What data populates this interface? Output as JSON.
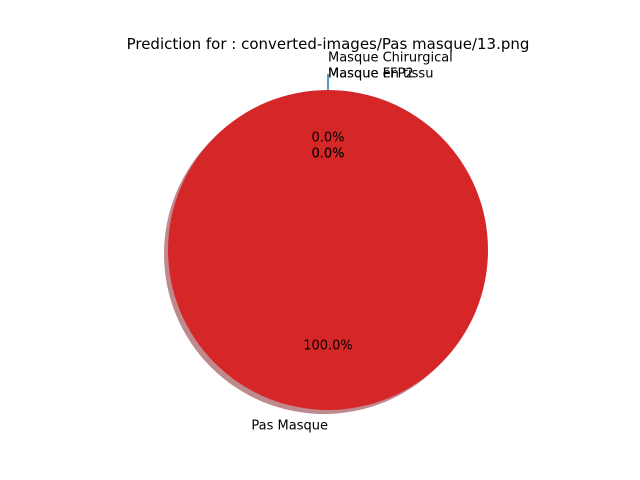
{
  "chart_data": {
    "type": "pie",
    "title": "Prediction for : converted-images/Pas masque/13.png",
    "slices": [
      {
        "label": "Masque Chirurgical",
        "value": 0.0,
        "pct_label": "0.0%",
        "color": "#1f77b4"
      },
      {
        "label": "Masque FFP2",
        "value": 0.0,
        "pct_label": "0.0%",
        "color": "#ff7f0e"
      },
      {
        "label": "Masque en tissu",
        "value": 0.0,
        "pct_label": "0.0%",
        "color": "#2ca02c"
      },
      {
        "label": "Pas Masque",
        "value": 100.0,
        "pct_label": "100.0%",
        "color": "#d62728"
      }
    ],
    "shadow": true,
    "explode_first": true
  }
}
